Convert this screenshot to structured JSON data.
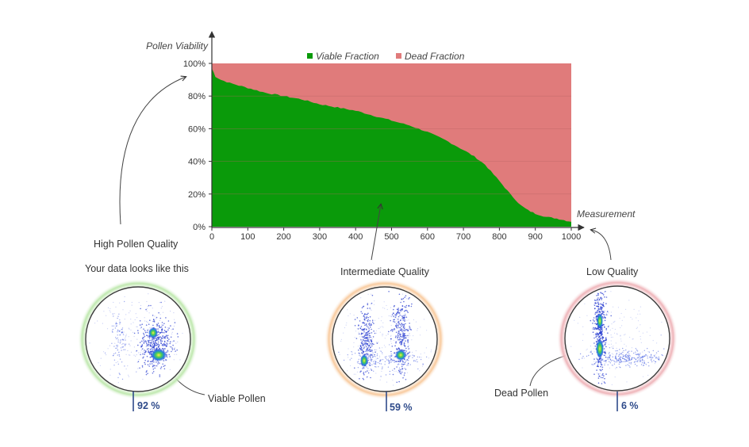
{
  "chart_data": {
    "type": "area",
    "title": "",
    "ylabel": "Pollen Viability",
    "xlabel": "Measurement",
    "xlim": [
      0,
      1000
    ],
    "ylim": [
      0,
      100
    ],
    "x_ticks": [
      0,
      100,
      200,
      300,
      400,
      500,
      600,
      700,
      800,
      900,
      1000
    ],
    "y_ticks": [
      0,
      20,
      40,
      60,
      80,
      100
    ],
    "y_tick_labels": [
      "0%",
      "20%",
      "40%",
      "60%",
      "80%",
      "100%"
    ],
    "legend_position": "top-center",
    "series": [
      {
        "name": "Viable Fraction",
        "color": "#0a9a0a",
        "x": [
          0,
          10,
          25,
          50,
          100,
          150,
          200,
          250,
          300,
          350,
          400,
          450,
          500,
          550,
          600,
          650,
          700,
          730,
          760,
          800,
          830,
          860,
          880,
          900,
          930,
          960,
          980,
          1000
        ],
        "values": [
          97,
          92,
          90,
          88,
          85,
          82,
          80,
          78,
          75,
          73,
          71,
          68,
          65,
          62,
          58,
          53,
          47,
          43,
          38,
          28,
          20,
          13,
          10,
          8,
          6,
          5,
          4,
          3
        ]
      },
      {
        "name": "Dead Fraction",
        "color": "#e07b7b",
        "x": [
          0,
          10,
          25,
          50,
          100,
          150,
          200,
          250,
          300,
          350,
          400,
          450,
          500,
          550,
          600,
          650,
          700,
          730,
          760,
          800,
          830,
          860,
          880,
          900,
          930,
          960,
          980,
          1000
        ],
        "values": [
          3,
          8,
          10,
          12,
          15,
          18,
          20,
          22,
          25,
          27,
          29,
          32,
          35,
          38,
          42,
          47,
          53,
          57,
          62,
          72,
          80,
          87,
          90,
          92,
          94,
          95,
          96,
          97
        ]
      }
    ],
    "annotations": {
      "high_quality": "High Pollen Quality",
      "your_data": "Your data looks like this",
      "intermediate": "Intermediate Quality",
      "low_quality": "Low Quality",
      "viable_pollen": "Viable Pollen",
      "dead_pollen": "Dead Pollen"
    },
    "samples": [
      {
        "name": "high",
        "percent_label": "92 %",
        "ring_color": "#7cc96a"
      },
      {
        "name": "intermediate",
        "percent_label": "59 %",
        "ring_color": "#f2a25a"
      },
      {
        "name": "low",
        "percent_label": "6 %",
        "ring_color": "#d9767e"
      }
    ]
  }
}
